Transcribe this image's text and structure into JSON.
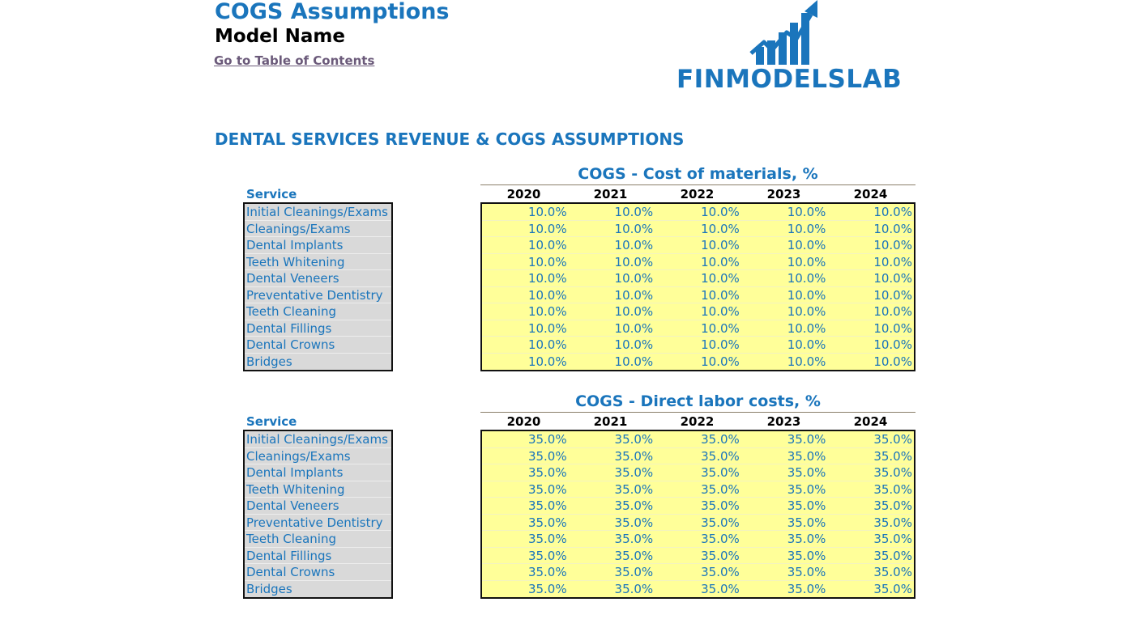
{
  "header": {
    "title": "COGS Assumptions",
    "model_name": "Model Name",
    "toc_link": "Go to Table of Contents"
  },
  "logo": {
    "text": "FINMODELSLAB",
    "icon": "bar-chart-arrow-icon",
    "color": "#1a75bc"
  },
  "section_title": "DENTAL SERVICES REVENUE & COGS ASSUMPTIONS",
  "colors": {
    "accent": "#1a75bc",
    "input_fill": "#ffff99",
    "label_fill": "#d9d9d9"
  },
  "tables": [
    {
      "title": "COGS - Cost of materials, %",
      "service_header": "Service",
      "years": [
        "2020",
        "2021",
        "2022",
        "2023",
        "2024"
      ],
      "rows": [
        {
          "service": "Initial Cleanings/Exams",
          "values": [
            "10.0%",
            "10.0%",
            "10.0%",
            "10.0%",
            "10.0%"
          ]
        },
        {
          "service": "Cleanings/Exams",
          "values": [
            "10.0%",
            "10.0%",
            "10.0%",
            "10.0%",
            "10.0%"
          ]
        },
        {
          "service": "Dental Implants",
          "values": [
            "10.0%",
            "10.0%",
            "10.0%",
            "10.0%",
            "10.0%"
          ]
        },
        {
          "service": "Teeth Whitening",
          "values": [
            "10.0%",
            "10.0%",
            "10.0%",
            "10.0%",
            "10.0%"
          ]
        },
        {
          "service": "Dental Veneers",
          "values": [
            "10.0%",
            "10.0%",
            "10.0%",
            "10.0%",
            "10.0%"
          ]
        },
        {
          "service": "Preventative Dentistry",
          "values": [
            "10.0%",
            "10.0%",
            "10.0%",
            "10.0%",
            "10.0%"
          ]
        },
        {
          "service": "Teeth Cleaning",
          "values": [
            "10.0%",
            "10.0%",
            "10.0%",
            "10.0%",
            "10.0%"
          ]
        },
        {
          "service": "Dental Fillings",
          "values": [
            "10.0%",
            "10.0%",
            "10.0%",
            "10.0%",
            "10.0%"
          ]
        },
        {
          "service": "Dental Crowns",
          "values": [
            "10.0%",
            "10.0%",
            "10.0%",
            "10.0%",
            "10.0%"
          ]
        },
        {
          "service": "Bridges",
          "values": [
            "10.0%",
            "10.0%",
            "10.0%",
            "10.0%",
            "10.0%"
          ]
        }
      ]
    },
    {
      "title": "COGS - Direct labor costs, %",
      "service_header": "Service",
      "years": [
        "2020",
        "2021",
        "2022",
        "2023",
        "2024"
      ],
      "rows": [
        {
          "service": "Initial Cleanings/Exams",
          "values": [
            "35.0%",
            "35.0%",
            "35.0%",
            "35.0%",
            "35.0%"
          ]
        },
        {
          "service": "Cleanings/Exams",
          "values": [
            "35.0%",
            "35.0%",
            "35.0%",
            "35.0%",
            "35.0%"
          ]
        },
        {
          "service": "Dental Implants",
          "values": [
            "35.0%",
            "35.0%",
            "35.0%",
            "35.0%",
            "35.0%"
          ]
        },
        {
          "service": "Teeth Whitening",
          "values": [
            "35.0%",
            "35.0%",
            "35.0%",
            "35.0%",
            "35.0%"
          ]
        },
        {
          "service": "Dental Veneers",
          "values": [
            "35.0%",
            "35.0%",
            "35.0%",
            "35.0%",
            "35.0%"
          ]
        },
        {
          "service": "Preventative Dentistry",
          "values": [
            "35.0%",
            "35.0%",
            "35.0%",
            "35.0%",
            "35.0%"
          ]
        },
        {
          "service": "Teeth Cleaning",
          "values": [
            "35.0%",
            "35.0%",
            "35.0%",
            "35.0%",
            "35.0%"
          ]
        },
        {
          "service": "Dental Fillings",
          "values": [
            "35.0%",
            "35.0%",
            "35.0%",
            "35.0%",
            "35.0%"
          ]
        },
        {
          "service": "Dental Crowns",
          "values": [
            "35.0%",
            "35.0%",
            "35.0%",
            "35.0%",
            "35.0%"
          ]
        },
        {
          "service": "Bridges",
          "values": [
            "35.0%",
            "35.0%",
            "35.0%",
            "35.0%",
            "35.0%"
          ]
        }
      ]
    }
  ]
}
